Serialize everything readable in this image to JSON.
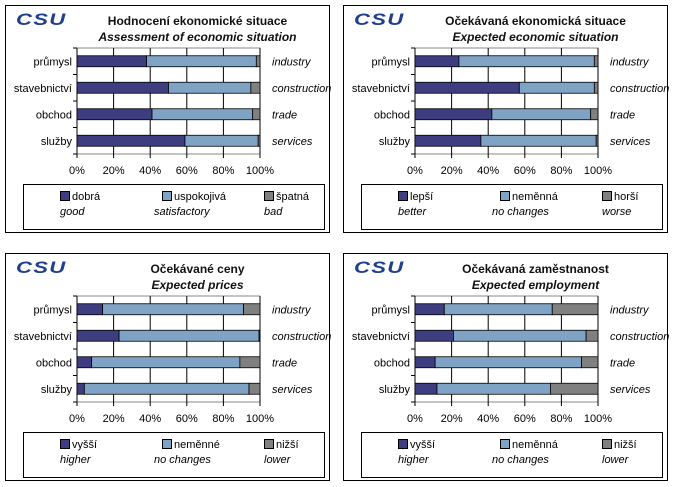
{
  "logo_text": "CSU",
  "colors": {
    "first": "#3d3d80",
    "second": "#7fa3c4",
    "third": "#808080"
  },
  "chart_data": [
    {
      "type": "bar",
      "stacked": true,
      "orientation": "horizontal",
      "title": "Hodnocení  ekonomické situace",
      "subtitle": "Assessment of economic situation",
      "categories": [
        "průmysl",
        "stavebnictví",
        "obchod",
        "služby"
      ],
      "categories_en": [
        "industry",
        "construction",
        "trade",
        "services"
      ],
      "xticks": [
        "0%",
        "20%",
        "40%",
        "60%",
        "80%",
        "100%"
      ],
      "xlim": [
        0,
        100
      ],
      "series": [
        {
          "name": "dobrá",
          "name_en": "good",
          "values": [
            38,
            50,
            41,
            59
          ]
        },
        {
          "name": "uspokojivá",
          "name_en": "satisfactory",
          "values": [
            60,
            45,
            55,
            40
          ]
        },
        {
          "name": "špatná",
          "name_en": "bad",
          "values": [
            2,
            5,
            4,
            1
          ]
        }
      ]
    },
    {
      "type": "bar",
      "stacked": true,
      "orientation": "horizontal",
      "title": "Očekávaná  ekonomická situace",
      "subtitle": "Expected economic situation",
      "categories": [
        "průmysl",
        "stavebnictví",
        "obchod",
        "služby"
      ],
      "categories_en": [
        "industry",
        "construction",
        "trade",
        "services"
      ],
      "xticks": [
        "0%",
        "20%",
        "40%",
        "60%",
        "80%",
        "100%"
      ],
      "xlim": [
        0,
        100
      ],
      "series": [
        {
          "name": "lepší",
          "name_en": "better",
          "values": [
            24,
            57,
            42,
            36
          ]
        },
        {
          "name": "neměnná",
          "name_en": "no changes",
          "values": [
            74,
            41,
            54,
            63
          ]
        },
        {
          "name": "horší",
          "name_en": "worse",
          "values": [
            2,
            2,
            4,
            1
          ]
        }
      ]
    },
    {
      "type": "bar",
      "stacked": true,
      "orientation": "horizontal",
      "title": "Očekávané ceny",
      "subtitle": "Expected prices",
      "categories": [
        "průmysl",
        "stavebnictví",
        "obchod",
        "služby"
      ],
      "categories_en": [
        "industry",
        "construction",
        "trade",
        "services"
      ],
      "xticks": [
        "0%",
        "20%",
        "40%",
        "60%",
        "80%",
        "100%"
      ],
      "xlim": [
        0,
        100
      ],
      "series": [
        {
          "name": "vyšší",
          "name_en": "higher",
          "values": [
            14,
            23,
            8,
            4
          ]
        },
        {
          "name": "neměnné",
          "name_en": "no changes",
          "values": [
            77,
            76.5,
            81,
            90
          ]
        },
        {
          "name": "nižší",
          "name_en": "lower",
          "values": [
            9,
            0.5,
            11,
            6
          ]
        }
      ]
    },
    {
      "type": "bar",
      "stacked": true,
      "orientation": "horizontal",
      "title": "Očekávaná zaměstnanost",
      "subtitle": "Expected employment",
      "categories": [
        "průmysl",
        "stavebnictví",
        "obchod",
        "služby"
      ],
      "categories_en": [
        "industry",
        "construction",
        "trade",
        "services"
      ],
      "xticks": [
        "0%",
        "20%",
        "40%",
        "60%",
        "80%",
        "100%"
      ],
      "xlim": [
        0,
        100
      ],
      "series": [
        {
          "name": "vyšší",
          "name_en": "higher",
          "values": [
            16,
            21,
            11,
            12
          ]
        },
        {
          "name": "neměnná",
          "name_en": "no changes",
          "values": [
            59,
            72.5,
            80,
            62
          ]
        },
        {
          "name": "nižší",
          "name_en": "lower",
          "values": [
            25,
            6.5,
            9,
            26
          ]
        }
      ]
    }
  ]
}
